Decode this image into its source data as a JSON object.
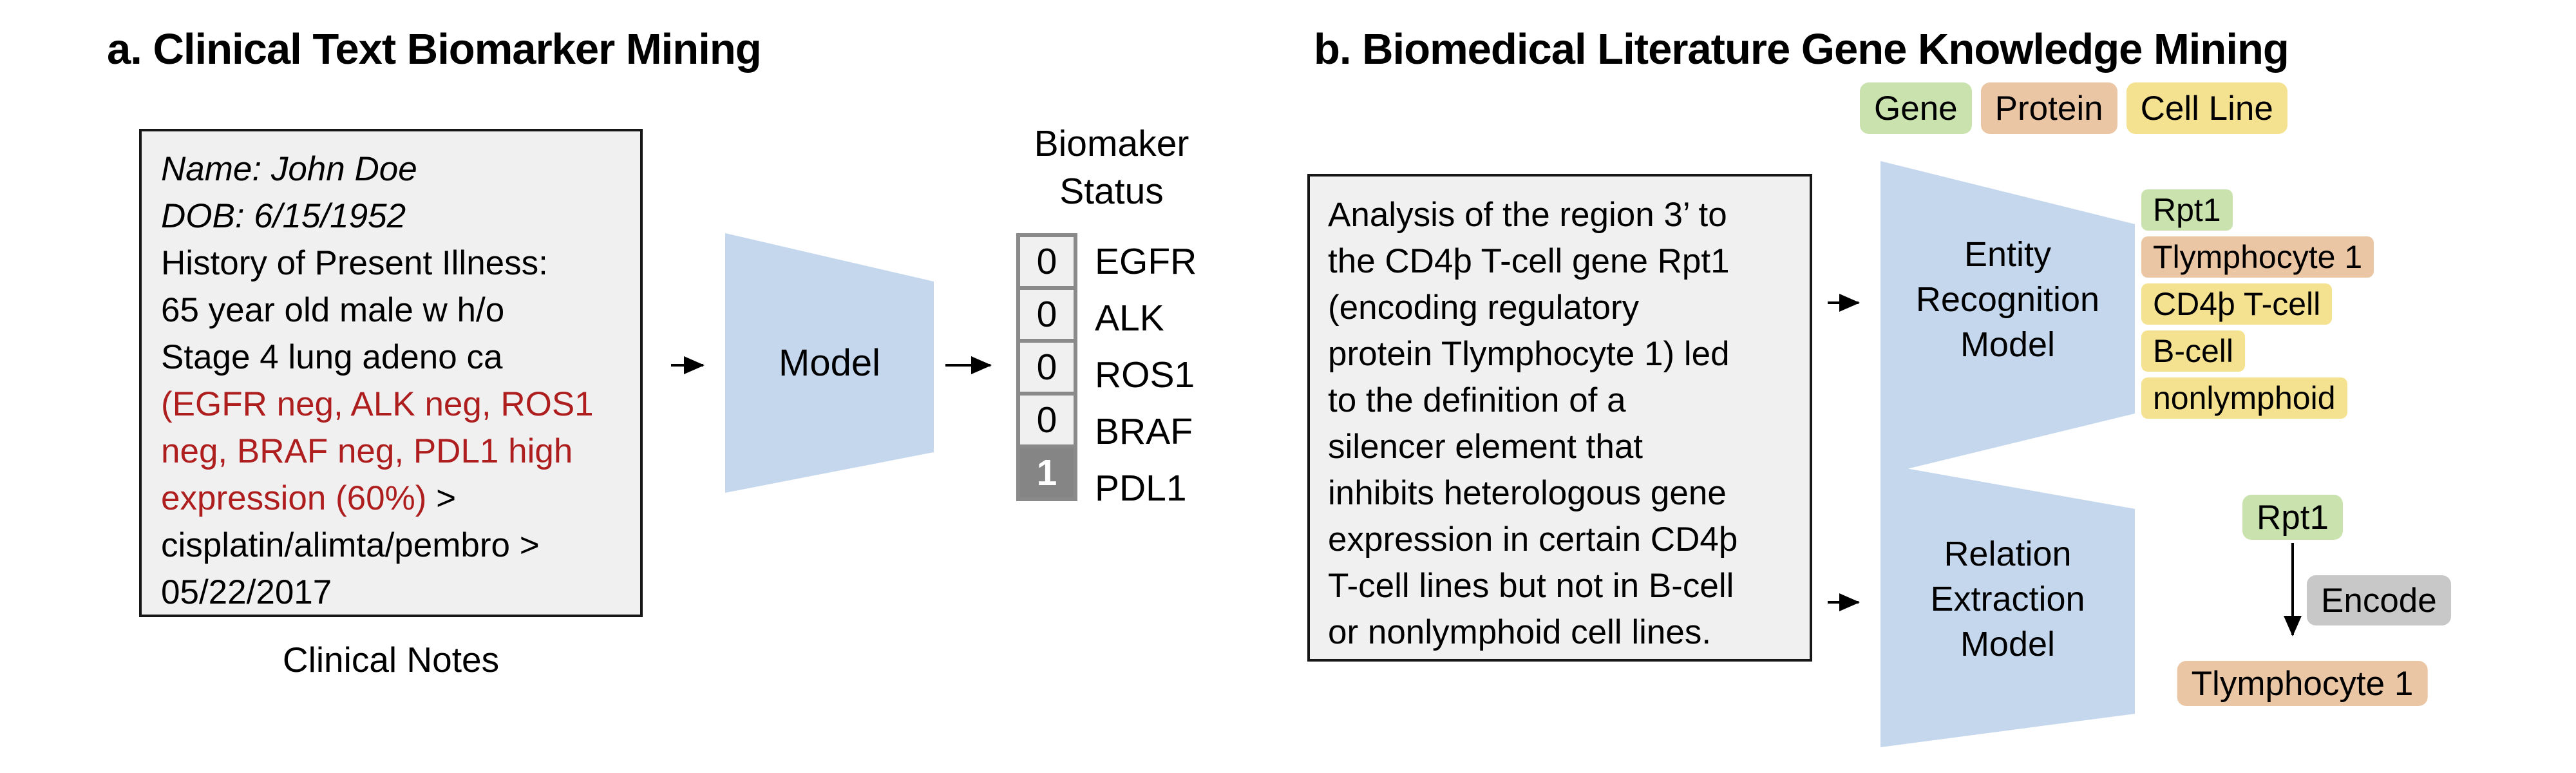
{
  "panel_a": {
    "title": "a. Clinical Text Biomarker Mining",
    "clinical_note": {
      "lines": [
        [
          {
            "t": "Name: John Doe",
            "s": "italic"
          }
        ],
        [
          {
            "t": "DOB: 6/15/1952",
            "s": "italic"
          }
        ],
        [
          {
            "t": "History of Present Illness:",
            "s": "normal"
          }
        ],
        [
          {
            "t": "65 year old male w h/o",
            "s": "normal"
          }
        ],
        [
          {
            "t": "Stage 4 lung adeno ca",
            "s": "normal"
          }
        ],
        [
          {
            "t": "(EGFR neg, ALK neg, ROS1",
            "s": "red"
          }
        ],
        [
          {
            "t": "neg, BRAF neg, PDL1 high",
            "s": "red"
          }
        ],
        [
          {
            "t": "expression (60%)",
            "s": "red"
          },
          {
            "t": " >",
            "s": "normal"
          }
        ],
        [
          {
            "t": "cisplatin/alimta/pembro >",
            "s": "normal"
          }
        ],
        [
          {
            "t": "05/22/2017",
            "s": "normal"
          }
        ]
      ],
      "caption": "Clinical Notes"
    },
    "model_label": "Model",
    "output_title_line1": "Biomaker",
    "output_title_line2": "Status",
    "biomarkers": [
      {
        "value": "0",
        "label": "EGFR",
        "positive": false
      },
      {
        "value": "0",
        "label": "ALK",
        "positive": false
      },
      {
        "value": "0",
        "label": "ROS1",
        "positive": false
      },
      {
        "value": "0",
        "label": "BRAF",
        "positive": false
      },
      {
        "value": "1",
        "label": "PDL1",
        "positive": true
      }
    ]
  },
  "panel_b": {
    "title": "b. Biomedical Literature Gene Knowledge Mining",
    "legend": [
      {
        "label": "Gene",
        "type": "gene"
      },
      {
        "label": "Protein",
        "type": "protein"
      },
      {
        "label": "Cell Line",
        "type": "cell_line"
      }
    ],
    "abstract": {
      "lines": [
        "Analysis of the region 3’ to",
        "the CD4þ T-cell gene Rpt1",
        "(encoding regulatory",
        "protein Tlymphocyte 1) led",
        "to the definition of a",
        "silencer element that",
        "inhibits heterologous gene",
        "expression in certain CD4þ",
        "T-cell lines but not in B-cell",
        "or nonlymphoid cell lines."
      ]
    },
    "er_model_lines": [
      "Entity",
      "Recognition",
      "Model"
    ],
    "re_model_lines": [
      "Relation",
      "Extraction",
      "Model"
    ],
    "entities": [
      {
        "text": "Rpt1",
        "type": "gene"
      },
      {
        "text": "Tlymphocyte 1",
        "type": "protein"
      },
      {
        "text": "CD4þ T-cell",
        "type": "cell_line"
      },
      {
        "text": "B-cell",
        "type": "cell_line"
      },
      {
        "text": "nonlymphoid",
        "type": "cell_line"
      }
    ],
    "relation": {
      "head": "Rpt1",
      "head_type": "gene",
      "label": "Encode",
      "tail": "Tlymphocyte 1",
      "tail_type": "protein"
    }
  },
  "colors": {
    "gene_green": "#c9e2ae",
    "protein_salmon": "#eac6a4",
    "cell_line_yellow": "#f5e290",
    "relation_gray": "#c8c8c8",
    "model_blue": "#c4d7ed",
    "note_red": "#ae1e1e",
    "box_bg": "#f0f0f0",
    "positive_cell_gray": "#858585",
    "cell_border_gray": "#8a8a8a"
  }
}
